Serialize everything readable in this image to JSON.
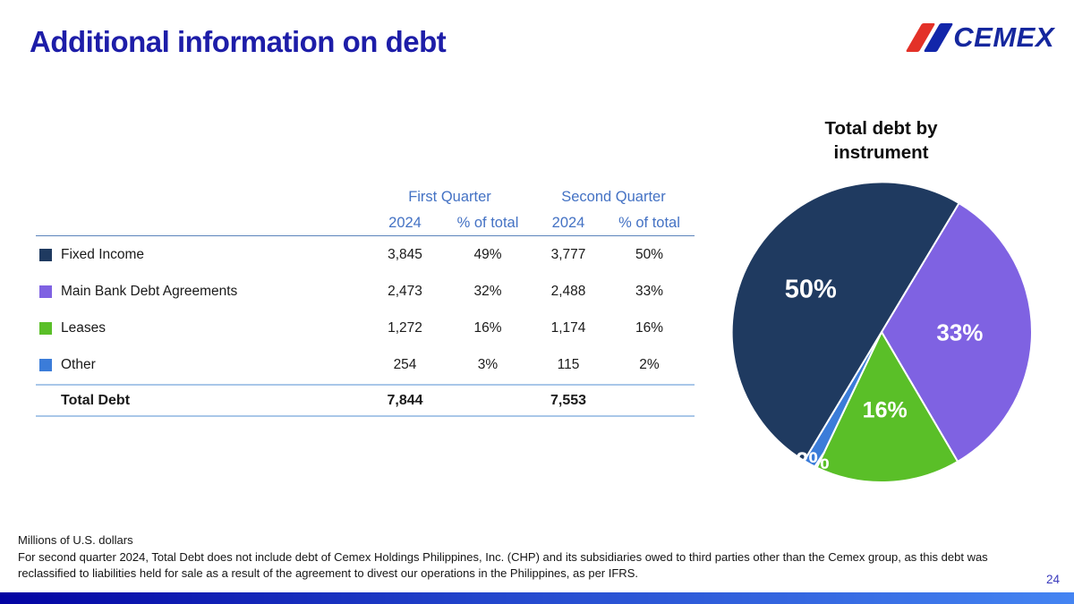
{
  "slide": {
    "title": "Additional information on debt",
    "page_number": "24",
    "units_note": "Millions of U.S. dollars",
    "footnote": "For second quarter 2024, Total Debt does not include debt of Cemex Holdings Philippines, Inc. (CHP) and its subsidiaries owed to third parties other than the Cemex group, as this debt was reclassified to liabilities held for sale as a result of the agreement to divest our operations in the Philippines, as per IFRS."
  },
  "logo": {
    "text": "CEMEX"
  },
  "colors": {
    "title_blue": "#1d1da8",
    "table_header_blue": "#4472c4",
    "fixed_income_navy": "#1f3a60",
    "main_bank_purple": "#7f62e2",
    "leases_green": "#5abf28",
    "other_blue": "#3b7cd9",
    "footer_bar_gradient_left": "#0202a2",
    "footer_bar_gradient_right": "#4484f2",
    "logo_red": "#e33128",
    "logo_blue": "#1226aa"
  },
  "table": {
    "group_headers": {
      "q1": "First Quarter",
      "q2": "Second Quarter"
    },
    "sub_headers": {
      "c1": "2024",
      "c2": "% of total",
      "c3": "2024",
      "c4": "% of total"
    },
    "rows": [
      {
        "label": "Fixed Income",
        "color": "#1f3a60",
        "q1_2024": "3,845",
        "q1_pct": "49%",
        "q2_2024": "3,777",
        "q2_pct": "50%"
      },
      {
        "label": "Main Bank Debt Agreements",
        "color": "#7f62e2",
        "q1_2024": "2,473",
        "q1_pct": "32%",
        "q2_2024": "2,488",
        "q2_pct": "33%"
      },
      {
        "label": "Leases",
        "color": "#5abf28",
        "q1_2024": "1,272",
        "q1_pct": "16%",
        "q2_2024": "1,174",
        "q2_pct": "16%"
      },
      {
        "label": "Other",
        "color": "#3b7cd9",
        "q1_2024": "254",
        "q1_pct": "3%",
        "q2_2024": "115",
        "q2_pct": "2%"
      }
    ],
    "total_row": {
      "label": "Total Debt",
      "q1_2024": "7,844",
      "q2_2024": "7,553"
    }
  },
  "chart_data": {
    "type": "pie",
    "title_line1": "Total debt by",
    "title_line2": "instrument",
    "categories": [
      "Fixed Income",
      "Main Bank Debt Agreements",
      "Leases",
      "Other"
    ],
    "series": [
      {
        "name": "First Quarter 2024",
        "values": [
          3845,
          2473,
          1272,
          254
        ],
        "pct_labels": [
          "49%",
          "32%",
          "16%",
          "3%"
        ],
        "total": 7844
      },
      {
        "name": "Second Quarter 2024",
        "values": [
          3777,
          2488,
          1174,
          115
        ],
        "pct_labels": [
          "50%",
          "33%",
          "16%",
          "2%"
        ],
        "total": 7553
      }
    ],
    "pie_depicts": "Second Quarter 2024",
    "legend_position": "table row swatches (left)",
    "slices_render_order": [
      {
        "name": "Main Bank Debt Agreements",
        "value": 2488,
        "label": "33%",
        "color": "#7f62e2",
        "label_r": 0.52,
        "font_px": 26
      },
      {
        "name": "Leases",
        "value": 1174,
        "label": "16%",
        "color": "#5abf28",
        "label_r": 0.52,
        "font_px": 25
      },
      {
        "name": "Other",
        "value": 115,
        "label": "2%",
        "color": "#3b7cd9",
        "label_r": 0.97,
        "font_px": 26
      },
      {
        "name": "Fixed Income",
        "value": 3777,
        "label": "50%",
        "color": "#1f3a60",
        "label_r": 0.55,
        "font_px": 29
      }
    ]
  }
}
